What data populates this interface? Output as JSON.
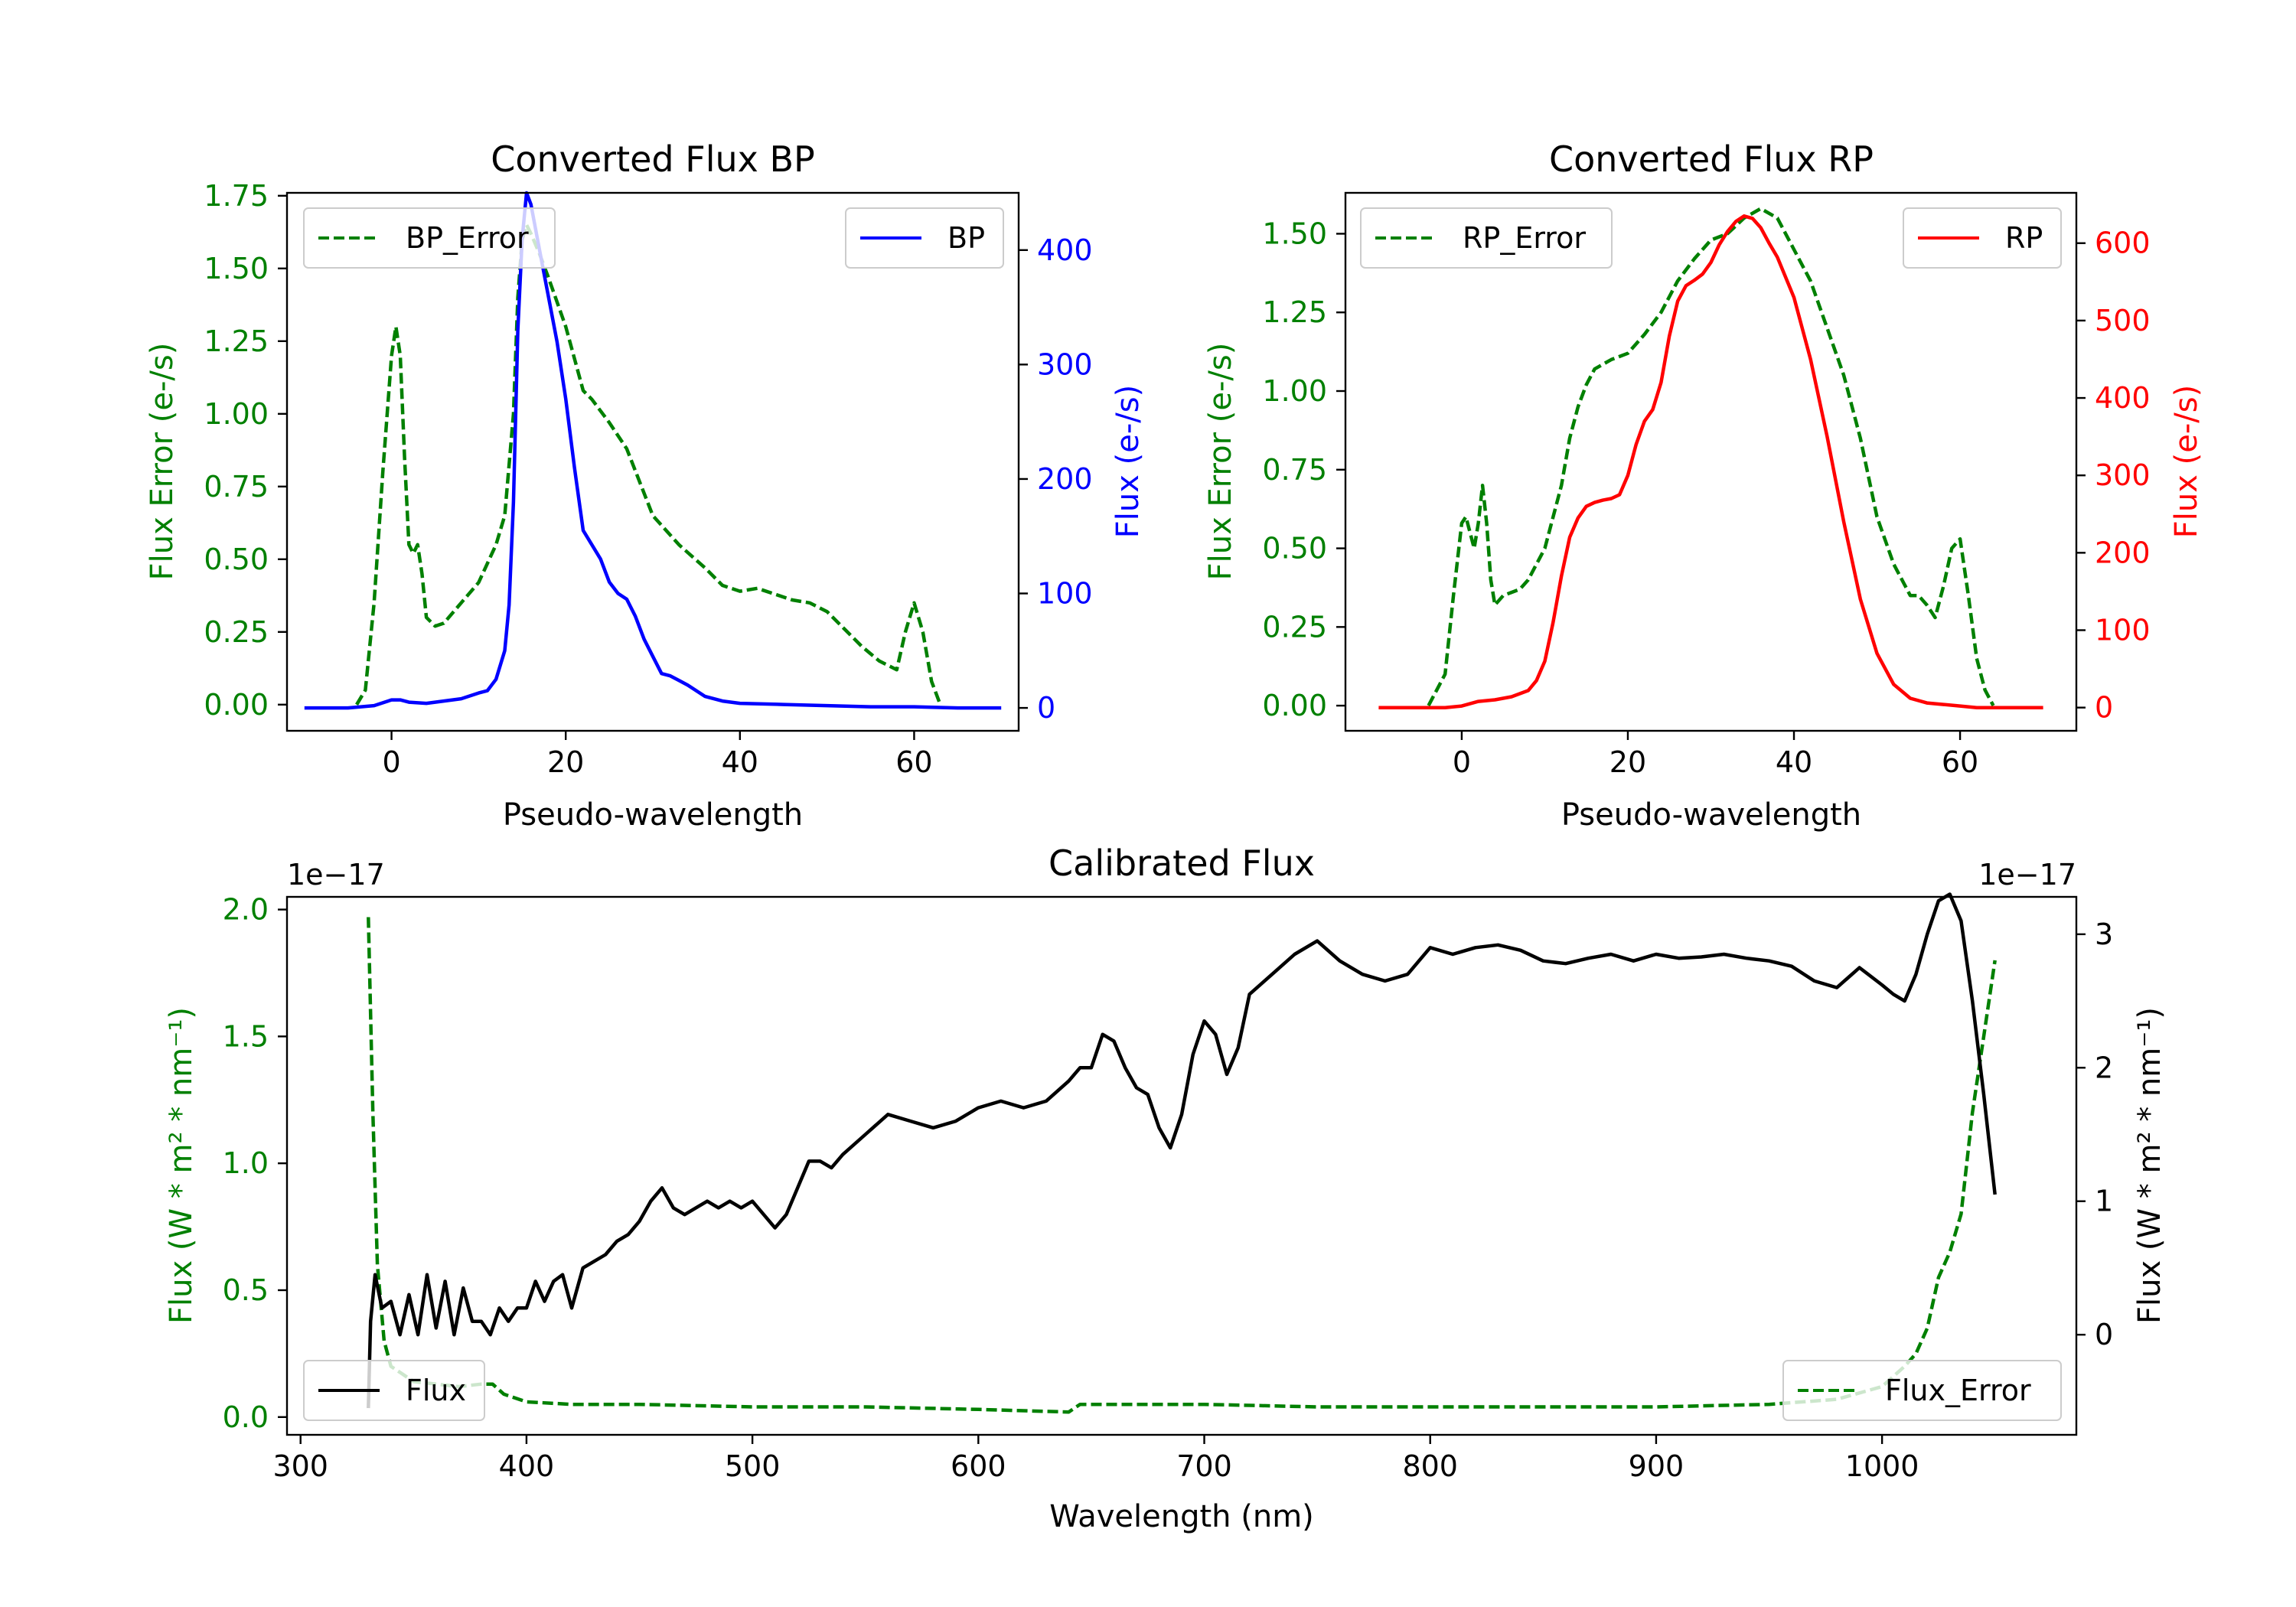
{
  "colors": {
    "green": "#008000",
    "blue": "#0000ff",
    "red": "#ff0000",
    "black": "#000000"
  },
  "chart_data": [
    {
      "id": "bp",
      "type": "line",
      "title": "Converted Flux BP",
      "xlabel": "Pseudo-wavelength",
      "ylabel_left": "Flux Error (e-/s)",
      "ylabel_right": "Flux (e-/s)",
      "xlim": [
        -12,
        72
      ],
      "ylim_left": [
        -0.09,
        1.76
      ],
      "ylim_right": [
        -20,
        450
      ],
      "xticks": [
        0,
        20,
        40,
        60
      ],
      "xtick_labels": [
        "0",
        "20",
        "40",
        "60"
      ],
      "yticks_left": [
        0,
        0.25,
        0.5,
        0.75,
        1.0,
        1.25,
        1.5,
        1.75
      ],
      "ytick_labels_left": [
        "0.00",
        "0.25",
        "0.50",
        "0.75",
        "1.00",
        "1.25",
        "1.50",
        "1.75"
      ],
      "yticks_right": [
        0,
        100,
        200,
        300,
        400
      ],
      "ytick_labels_right": [
        "0",
        "100",
        "200",
        "300",
        "400"
      ],
      "legend_left": "BP_Error",
      "legend_right": "BP",
      "series": [
        {
          "name": "BP_Error",
          "axis": "left",
          "color": "green",
          "style": "dashed",
          "x": [
            -4,
            -3,
            -2,
            -1,
            0,
            0.5,
            1,
            1.5,
            2,
            2.5,
            3,
            3.5,
            4,
            5,
            6,
            8,
            10,
            12,
            13,
            14,
            14.5,
            15,
            15.5,
            16,
            17,
            18,
            20,
            22,
            23,
            25,
            27,
            30,
            33,
            36,
            38,
            40,
            42,
            44,
            46,
            48,
            50,
            52,
            54,
            56,
            58,
            59,
            60,
            61,
            62,
            63
          ],
          "y": [
            0.0,
            0.05,
            0.35,
            0.8,
            1.2,
            1.3,
            1.2,
            0.85,
            0.55,
            0.52,
            0.55,
            0.45,
            0.3,
            0.27,
            0.28,
            0.35,
            0.42,
            0.55,
            0.65,
            1.0,
            1.4,
            1.6,
            1.65,
            1.62,
            1.55,
            1.47,
            1.3,
            1.08,
            1.05,
            0.97,
            0.88,
            0.65,
            0.55,
            0.47,
            0.41,
            0.39,
            0.4,
            0.38,
            0.36,
            0.35,
            0.32,
            0.26,
            0.2,
            0.15,
            0.12,
            0.25,
            0.35,
            0.25,
            0.08,
            0.0
          ]
        },
        {
          "name": "BP",
          "axis": "right",
          "color": "blue",
          "style": "solid",
          "x": [
            -10,
            -5,
            -2,
            0,
            1,
            2,
            4,
            6,
            8,
            10,
            11,
            12,
            13,
            13.5,
            14,
            14.5,
            15,
            15.5,
            16,
            17,
            18,
            19,
            20,
            21,
            22,
            24,
            25,
            26,
            27,
            28,
            29,
            30,
            31,
            32,
            34,
            36,
            38,
            40,
            45,
            50,
            55,
            60,
            65,
            70
          ],
          "y": [
            0,
            0,
            2,
            7,
            7,
            5,
            4,
            6,
            8,
            13,
            15,
            25,
            50,
            90,
            180,
            330,
            410,
            450,
            440,
            400,
            360,
            320,
            270,
            210,
            155,
            130,
            110,
            100,
            95,
            80,
            60,
            45,
            30,
            28,
            20,
            10,
            6,
            4,
            3,
            2,
            1,
            1,
            0,
            0
          ]
        }
      ]
    },
    {
      "id": "rp",
      "type": "line",
      "title": "Converted Flux RP",
      "xlabel": "Pseudo-wavelength",
      "ylabel_left": "Flux Error (e-/s)",
      "ylabel_right": "Flux (e-/s)",
      "xlim": [
        -14,
        74
      ],
      "ylim_left": [
        -0.08,
        1.63
      ],
      "ylim_right": [
        -30,
        665
      ],
      "xticks": [
        0,
        20,
        40,
        60
      ],
      "xtick_labels": [
        "0",
        "20",
        "40",
        "60"
      ],
      "yticks_left": [
        0,
        0.25,
        0.5,
        0.75,
        1.0,
        1.25,
        1.5
      ],
      "ytick_labels_left": [
        "0.00",
        "0.25",
        "0.50",
        "0.75",
        "1.00",
        "1.25",
        "1.50"
      ],
      "yticks_right": [
        0,
        100,
        200,
        300,
        400,
        500,
        600
      ],
      "ytick_labels_right": [
        "0",
        "100",
        "200",
        "300",
        "400",
        "500",
        "600"
      ],
      "legend_left": "RP_Error",
      "legend_right": "RP",
      "series": [
        {
          "name": "RP_Error",
          "axis": "left",
          "color": "green",
          "style": "dashed",
          "x": [
            -4,
            -2,
            -1,
            0,
            0.5,
            1,
            1.5,
            2,
            2.5,
            3,
            3.5,
            4,
            5,
            6,
            7,
            8,
            10,
            12,
            13,
            14,
            15,
            16,
            18,
            20,
            22,
            24,
            26,
            28,
            30,
            32,
            34,
            36,
            38,
            40,
            42,
            44,
            46,
            48,
            50,
            52,
            54,
            55,
            56,
            57,
            58,
            59,
            60,
            61,
            62,
            63,
            64
          ],
          "y": [
            0.0,
            0.1,
            0.35,
            0.58,
            0.6,
            0.55,
            0.5,
            0.58,
            0.7,
            0.58,
            0.4,
            0.32,
            0.35,
            0.36,
            0.37,
            0.4,
            0.5,
            0.7,
            0.85,
            0.95,
            1.02,
            1.07,
            1.1,
            1.12,
            1.18,
            1.25,
            1.35,
            1.42,
            1.48,
            1.5,
            1.55,
            1.58,
            1.55,
            1.45,
            1.35,
            1.2,
            1.05,
            0.85,
            0.6,
            0.45,
            0.35,
            0.35,
            0.32,
            0.28,
            0.38,
            0.5,
            0.53,
            0.35,
            0.15,
            0.05,
            0.0
          ]
        },
        {
          "name": "RP",
          "axis": "right",
          "color": "red",
          "style": "solid",
          "x": [
            -10,
            -5,
            -2,
            0,
            2,
            4,
            6,
            8,
            9,
            10,
            11,
            12,
            13,
            14,
            15,
            16,
            17,
            18,
            19,
            20,
            21,
            22,
            23,
            24,
            25,
            26,
            27,
            28,
            29,
            30,
            31,
            32,
            33,
            34,
            35,
            36,
            37,
            38,
            40,
            42,
            44,
            46,
            48,
            50,
            52,
            54,
            56,
            58,
            60,
            62,
            65,
            70
          ],
          "y": [
            0,
            0,
            0,
            2,
            8,
            10,
            14,
            22,
            35,
            60,
            110,
            170,
            220,
            245,
            260,
            265,
            268,
            270,
            275,
            300,
            340,
            370,
            385,
            420,
            480,
            525,
            545,
            552,
            560,
            575,
            598,
            615,
            628,
            635,
            632,
            620,
            600,
            582,
            530,
            450,
            350,
            240,
            140,
            70,
            30,
            12,
            6,
            4,
            2,
            0,
            0,
            0
          ]
        }
      ]
    },
    {
      "id": "calibrated",
      "type": "line",
      "title": "Calibrated Flux",
      "xlabel": "Wavelength (nm)",
      "ylabel_left": "Flux (W * m² * nm⁻¹)",
      "ylabel_right": "Flux (W * m² * nm⁻¹)",
      "offset_left": "1e−17",
      "offset_right": "1e−17",
      "xlim": [
        294,
        1086
      ],
      "ylim_left": [
        -0.07,
        2.05
      ],
      "ylim_right": [
        -0.75,
        3.28
      ],
      "xticks": [
        300,
        400,
        500,
        600,
        700,
        800,
        900,
        1000
      ],
      "xtick_labels": [
        "300",
        "400",
        "500",
        "600",
        "700",
        "800",
        "900",
        "1000"
      ],
      "yticks_left": [
        0,
        0.5,
        1.0,
        1.5,
        2.0
      ],
      "ytick_labels_left": [
        "0.0",
        "0.5",
        "1.0",
        "1.5",
        "2.0"
      ],
      "yticks_right": [
        0,
        1,
        2,
        3
      ],
      "ytick_labels_right": [
        "0",
        "1",
        "2",
        "3"
      ],
      "legend_left": "Flux",
      "legend_right": "Flux_Error",
      "series": [
        {
          "name": "Flux_Error",
          "axis": "left",
          "color": "green",
          "style": "dashed",
          "x": [
            330,
            332,
            334,
            337,
            340,
            345,
            350,
            360,
            370,
            380,
            385,
            390,
            400,
            420,
            450,
            500,
            550,
            600,
            640,
            645,
            700,
            750,
            800,
            850,
            900,
            950,
            980,
            1000,
            1010,
            1015,
            1020,
            1025,
            1030,
            1035,
            1040,
            1045,
            1050
          ],
          "y": [
            1.97,
            1.2,
            0.6,
            0.3,
            0.2,
            0.17,
            0.14,
            0.13,
            0.12,
            0.13,
            0.13,
            0.09,
            0.06,
            0.05,
            0.05,
            0.04,
            0.04,
            0.03,
            0.02,
            0.05,
            0.05,
            0.04,
            0.04,
            0.04,
            0.04,
            0.05,
            0.07,
            0.12,
            0.2,
            0.25,
            0.35,
            0.55,
            0.65,
            0.8,
            1.2,
            1.5,
            1.8
          ]
        },
        {
          "name": "Flux",
          "axis": "right",
          "color": "black",
          "style": "solid",
          "x": [
            330,
            331,
            333,
            336,
            340,
            344,
            348,
            352,
            356,
            360,
            364,
            368,
            372,
            376,
            380,
            384,
            388,
            392,
            396,
            400,
            404,
            408,
            412,
            416,
            420,
            425,
            430,
            435,
            440,
            445,
            450,
            455,
            460,
            465,
            470,
            475,
            480,
            485,
            490,
            495,
            500,
            505,
            510,
            515,
            520,
            525,
            530,
            535,
            540,
            550,
            560,
            570,
            580,
            590,
            600,
            610,
            620,
            630,
            640,
            645,
            650,
            655,
            660,
            665,
            670,
            675,
            680,
            685,
            690,
            695,
            700,
            705,
            710,
            715,
            720,
            730,
            740,
            750,
            760,
            770,
            780,
            790,
            800,
            810,
            820,
            830,
            840,
            850,
            860,
            870,
            880,
            890,
            900,
            910,
            920,
            930,
            940,
            950,
            960,
            970,
            980,
            990,
            1000,
            1005,
            1010,
            1015,
            1020,
            1025,
            1030,
            1035,
            1040,
            1045,
            1050
          ],
          "y": [
            -0.55,
            0.1,
            0.45,
            0.2,
            0.25,
            0.0,
            0.3,
            0.0,
            0.45,
            0.05,
            0.4,
            0.0,
            0.35,
            0.1,
            0.1,
            0.0,
            0.2,
            0.1,
            0.2,
            0.2,
            0.4,
            0.25,
            0.4,
            0.45,
            0.2,
            0.5,
            0.55,
            0.6,
            0.7,
            0.75,
            0.85,
            1.0,
            1.1,
            0.95,
            0.9,
            0.95,
            1.0,
            0.95,
            1.0,
            0.95,
            1.0,
            0.9,
            0.8,
            0.9,
            1.1,
            1.3,
            1.3,
            1.25,
            1.35,
            1.5,
            1.65,
            1.6,
            1.55,
            1.6,
            1.7,
            1.75,
            1.7,
            1.75,
            1.9,
            2.0,
            2.0,
            2.25,
            2.2,
            2.0,
            1.85,
            1.8,
            1.55,
            1.4,
            1.65,
            2.1,
            2.35,
            2.25,
            1.95,
            2.15,
            2.55,
            2.7,
            2.85,
            2.95,
            2.8,
            2.7,
            2.65,
            2.7,
            2.9,
            2.85,
            2.9,
            2.92,
            2.88,
            2.8,
            2.78,
            2.82,
            2.85,
            2.8,
            2.85,
            2.82,
            2.83,
            2.85,
            2.82,
            2.8,
            2.76,
            2.65,
            2.6,
            2.75,
            2.62,
            2.55,
            2.5,
            2.7,
            3.0,
            3.25,
            3.3,
            3.1,
            2.5,
            1.8,
            1.05
          ]
        }
      ]
    }
  ]
}
